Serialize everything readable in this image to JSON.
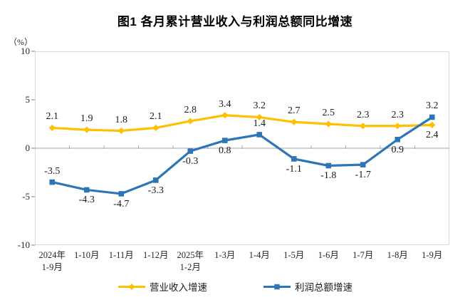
{
  "page": {
    "background": "#ffffff"
  },
  "chart_data": {
    "type": "line",
    "title": "图1  各月累计营业收入与利润总额同比增速",
    "unit_label": "（%）",
    "categories": [
      [
        "2024年",
        "1-9月"
      ],
      [
        "1-10月"
      ],
      [
        "1-11月"
      ],
      [
        "1-12月"
      ],
      [
        "2025年",
        "1-2月"
      ],
      [
        "1-3月"
      ],
      [
        "1-4月"
      ],
      [
        "1-5月"
      ],
      [
        "1-6月"
      ],
      [
        "1-7月"
      ],
      [
        "1-8月"
      ],
      [
        "1-9月"
      ]
    ],
    "y_ticks": [
      10,
      5,
      0,
      -5,
      -10
    ],
    "ylim": [
      -10,
      10
    ],
    "grid": "zero-line-only",
    "legend_position": "bottom",
    "axis_color": "#a6a6a6",
    "border_color": "#d9d9d9",
    "series": [
      {
        "name": "营业收入增速",
        "color": "#FFC000",
        "marker": "diamond",
        "values": [
          2.1,
          1.9,
          1.8,
          2.1,
          2.8,
          3.4,
          3.2,
          2.7,
          2.5,
          2.3,
          2.3,
          2.4
        ],
        "label_side": [
          "above",
          "above",
          "above",
          "above",
          "above",
          "above",
          "above",
          "above",
          "above",
          "above",
          "above",
          "below"
        ]
      },
      {
        "name": "利润总额增速",
        "color": "#2E75B6",
        "marker": "square",
        "values": [
          -3.5,
          -4.3,
          -4.7,
          -3.3,
          -0.3,
          0.8,
          1.4,
          -1.1,
          -1.8,
          -1.7,
          0.9,
          3.2
        ],
        "label_side": [
          "above",
          "below",
          "below",
          "below",
          "below",
          "below",
          "above",
          "below",
          "below",
          "below",
          "below",
          "above"
        ]
      }
    ]
  }
}
